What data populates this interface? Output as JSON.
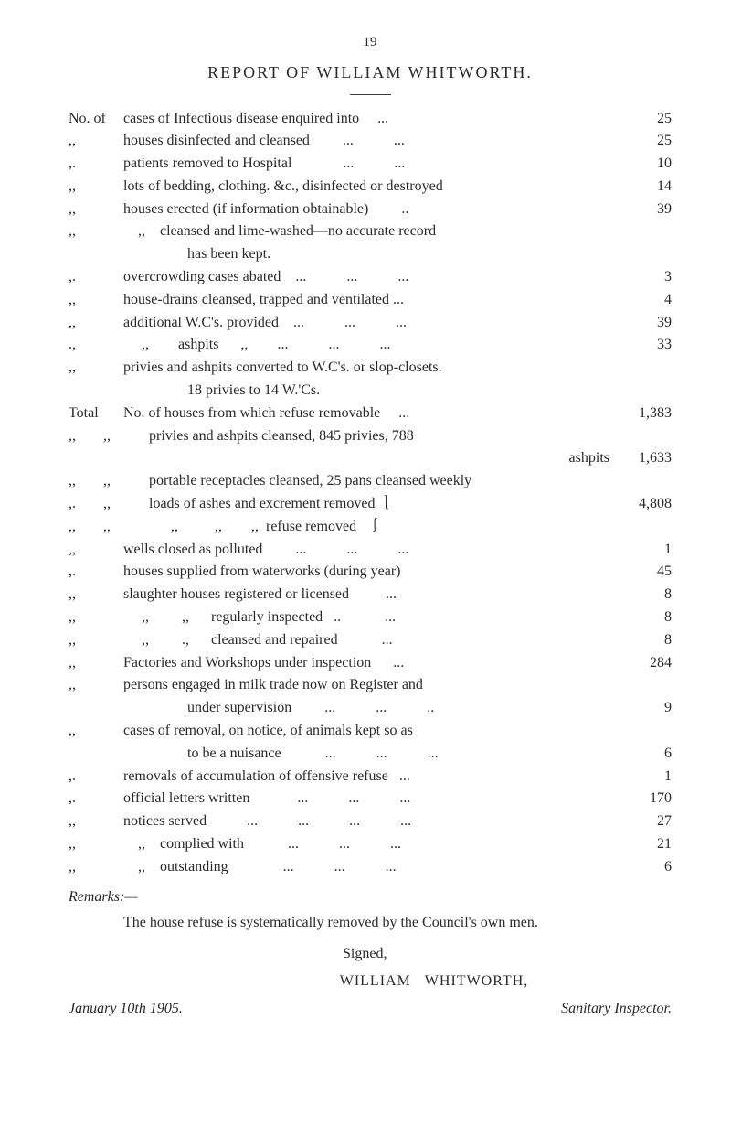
{
  "page_number": "19",
  "title": "REPORT OF WILLIAM WHITWORTH.",
  "lines": {
    "l1": {
      "prefix": "No. of",
      "text": "cases of Infectious disease enquired into     ...",
      "value": "25"
    },
    "l2": {
      "prefix": ",,",
      "text": "houses disinfected and cleansed         ...           ...",
      "value": "25"
    },
    "l3": {
      "prefix": ",.",
      "text": "patients removed to Hospital              ...           ...",
      "value": "10"
    },
    "l4": {
      "prefix": ",,",
      "text": "lots of bedding, clothing. &c., disinfected or destroyed",
      "value": "14"
    },
    "l5": {
      "prefix": ",,",
      "text": "houses erected (if information obtainable)         ..",
      "value": "39"
    },
    "l6": {
      "prefix": ",,",
      "text": "    ,,    cleansed and lime-washed—no accurate record",
      "value": ""
    },
    "l6b": {
      "text": "has been kept."
    },
    "l7": {
      "prefix": ",.",
      "text": "overcrowding cases abated    ...           ...           ...",
      "value": "3"
    },
    "l8": {
      "prefix": ",,",
      "text": "house-drains cleansed, trapped and ventilated ...",
      "value": "4"
    },
    "l9": {
      "prefix": ",,",
      "text": "additional W.C's. provided    ...           ...           ...",
      "value": "39"
    },
    "l10": {
      "prefix": ".,",
      "text": "     ,,        ashpits      ,,        ...           ...           ...",
      "value": "33"
    },
    "l11": {
      "prefix": ",,",
      "text": "privies and ashpits converted to W.C's. or slop-closets.",
      "value": ""
    },
    "l11b": {
      "text": "18 privies to 14 W.'Cs."
    },
    "l12": {
      "prefix": "Total",
      "text": "No. of houses from which refuse removable     ...",
      "value": "1,383"
    },
    "l13": {
      "prefix": ",,",
      "prefix2": ",,",
      "text": "privies and ashpits cleansed, 845 privies, 788",
      "value": ""
    },
    "l13b": {
      "text": "ashpits",
      "value": "1,633"
    },
    "l14": {
      "prefix": ",,",
      "prefix2": ",,",
      "text": "portable receptacles cleansed, 25 pans cleansed weekly",
      "value": ""
    },
    "l15": {
      "prefix": ",.",
      "prefix2": ",,",
      "text": "loads of ashes and excrement removed ⎱",
      "value": "4,808"
    },
    "l16": {
      "prefix": ",,",
      "prefix2": ",,",
      "text": "      ,,          ,,        ,,  refuse removed   ⎰",
      "value": ""
    },
    "l17": {
      "prefix": ",,",
      "text": "wells closed as polluted         ...           ...           ...",
      "value": "1"
    },
    "l18": {
      "prefix": ",.",
      "text": "houses supplied from waterworks (during year)",
      "value": "45"
    },
    "l19": {
      "prefix": ",,",
      "text": "slaughter houses registered or licensed          ...",
      "value": "8"
    },
    "l20": {
      "prefix": ",,",
      "text": "     ,,         ,,      regularly inspected   ..            ...",
      "value": "8"
    },
    "l21": {
      "prefix": ",,",
      "text": "     ,,         .,      cleansed and repaired            ...",
      "value": "8"
    },
    "l22": {
      "prefix": ",,",
      "text": "Factories and Workshops under inspection      ...",
      "value": "284"
    },
    "l23": {
      "prefix": ",,",
      "text": "persons engaged in milk trade now on Register and",
      "value": ""
    },
    "l23b": {
      "text": "under supervision         ...           ...           ..",
      "value": "9"
    },
    "l24": {
      "prefix": ",,",
      "text": "cases of removal, on notice, of animals kept so as",
      "value": ""
    },
    "l24b": {
      "text": "to be a nuisance            ...           ...           ...",
      "value": "6"
    },
    "l25": {
      "prefix": ",.",
      "text": "removals of accumulation of offensive refuse   ...",
      "value": "1"
    },
    "l26": {
      "prefix": ",.",
      "text": "official letters written             ...           ...           ...",
      "value": "170"
    },
    "l27": {
      "prefix": ",,",
      "text": "notices served           ...           ...           ...           ...",
      "value": "27"
    },
    "l28": {
      "prefix": ",,",
      "text": "    ,,    complied with            ...           ...           ...",
      "value": "21"
    },
    "l29": {
      "prefix": ",,",
      "text": "    ,,    outstanding               ...           ...           ...",
      "value": "6"
    }
  },
  "remarks_label": "Remarks:—",
  "remarks_text": "The house refuse is systematically removed by the Council's own men.",
  "signed": "Signed,",
  "signature": "WILLIAM   WHITWORTH,",
  "date": "January 10th 1905.",
  "inspector": "Sanitary Inspector."
}
